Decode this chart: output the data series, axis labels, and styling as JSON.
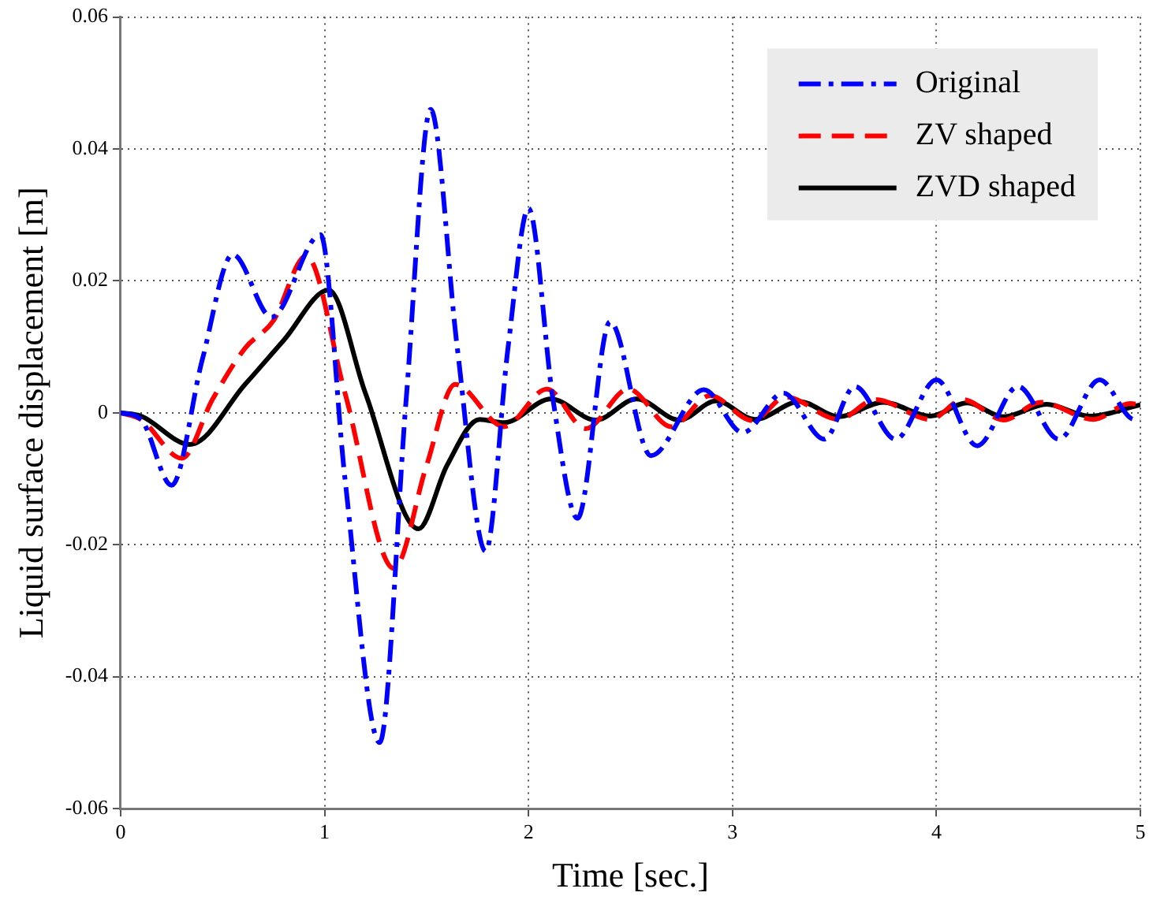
{
  "chart_data": {
    "type": "line",
    "xlabel": "Time [sec.]",
    "ylabel": "Liquid surface displacement [m]",
    "xlim": [
      0,
      5
    ],
    "xticks": [
      0,
      1,
      2,
      3,
      4,
      5
    ],
    "ylim": [
      -0.06,
      0.06
    ],
    "yticks": [
      -0.06,
      -0.04,
      -0.02,
      0,
      0.02,
      0.04,
      0.06
    ],
    "grid": true,
    "legend": "top right",
    "marker": "none",
    "series": [
      {
        "name": "Original",
        "color": "#0000ff",
        "line_style": "dashdot",
        "x": [
          0,
          0.1,
          0.25,
          0.4,
          0.55,
          0.74,
          0.98,
          1.1,
          1.27,
          1.4,
          1.52,
          1.65,
          1.79,
          1.9,
          2.0,
          2.12,
          2.24,
          2.4,
          2.6,
          2.86,
          3.05,
          3.25,
          3.45,
          3.6,
          3.8,
          4.0,
          4.2,
          4.4,
          4.6,
          4.8,
          4.97,
          5.0
        ],
        "values": [
          0,
          -0.001,
          -0.011,
          0.008,
          0.024,
          0.0145,
          0.027,
          -0.01,
          -0.05,
          0.002,
          0.046,
          0.01,
          -0.021,
          0.01,
          0.031,
          0.002,
          -0.016,
          0.0138,
          -0.0065,
          0.0035,
          -0.003,
          0.003,
          -0.004,
          0.004,
          -0.004,
          0.005,
          -0.005,
          0.004,
          -0.004,
          0.005,
          -0.001,
          -0.001
        ]
      },
      {
        "name": "ZV shaped",
        "color": "#ff0000",
        "line_style": "dashed",
        "x": [
          0,
          0.1,
          0.3,
          0.45,
          0.61,
          0.75,
          0.91,
          1.1,
          1.34,
          1.5,
          1.64,
          1.88,
          2.09,
          2.28,
          2.49,
          2.7,
          2.89,
          3.1,
          3.26,
          3.52,
          3.7,
          3.97,
          4.13,
          4.33,
          4.51,
          4.77,
          4.95,
          5.0
        ],
        "values": [
          0,
          -0.001,
          -0.0069,
          0.002,
          0.0098,
          0.014,
          0.0238,
          0.003,
          -0.0236,
          -0.008,
          0.0043,
          -0.0021,
          0.0036,
          -0.0024,
          0.0036,
          -0.0021,
          0.0026,
          -0.0012,
          0.0024,
          -0.001,
          0.002,
          -0.001,
          0.002,
          -0.0011,
          0.0016,
          -0.001,
          0.0014,
          0.0012
        ]
      },
      {
        "name": "ZVD shaped",
        "color": "#000000",
        "line_style": "solid",
        "x": [
          0,
          0.1,
          0.34,
          0.61,
          0.8,
          1.02,
          1.2,
          1.46,
          1.6,
          1.76,
          1.88,
          2.11,
          2.33,
          2.53,
          2.74,
          2.92,
          3.11,
          3.33,
          3.52,
          3.74,
          3.97,
          4.15,
          4.33,
          4.54,
          4.75,
          5.0
        ],
        "values": [
          0,
          -0.0005,
          -0.0048,
          0.0043,
          0.011,
          0.0186,
          0.003,
          -0.0176,
          -0.008,
          -0.001,
          -0.0015,
          0.0021,
          -0.0011,
          0.0021,
          -0.0011,
          0.0018,
          -0.001,
          0.0017,
          -0.0006,
          0.0016,
          -0.0005,
          0.0015,
          -0.0006,
          0.0013,
          -0.0005,
          0.0012
        ]
      }
    ]
  }
}
